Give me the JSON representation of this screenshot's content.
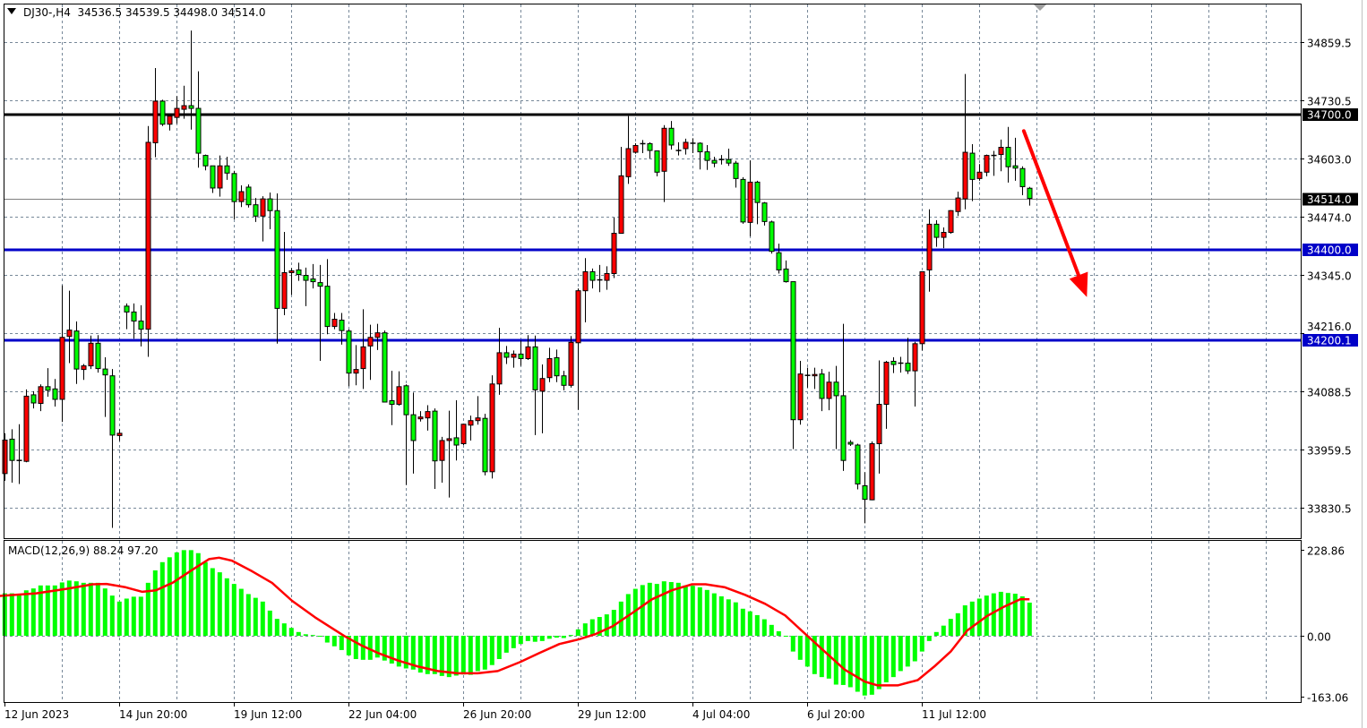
{
  "header": {
    "symbol": "DJ30-,H4",
    "open": "34536.5",
    "high": "34539.5",
    "low": "34498.0",
    "close": "34514.0"
  },
  "colors": {
    "bull": "#ff0000",
    "bear": "#00ff00",
    "grid": "#778899",
    "resistance": "#000000",
    "support": "#0000c8",
    "macd_hist": "#00ff00",
    "macd_signal": "#ff0000",
    "arrow": "#ff0000"
  },
  "price_axis": {
    "ticks": [
      "34859.5",
      "34730.5",
      "34603.0",
      "34474.0",
      "34345.0",
      "34216.0",
      "34088.5",
      "33959.5",
      "33830.5"
    ],
    "range": [
      33830.5,
      34859.5
    ]
  },
  "levels": [
    {
      "label": "34700.0",
      "value": 34700.0,
      "kind": "resistance"
    },
    {
      "label": "34400.0",
      "value": 34400.0,
      "kind": "support"
    },
    {
      "label": "34200.1",
      "value": 34200.1,
      "kind": "support"
    }
  ],
  "bid": {
    "label": "34514.0",
    "value": 34514.0
  },
  "time_axis": {
    "labels": [
      "12 Jun 2023",
      "14 Jun 20:00",
      "19 Jun 12:00",
      "22 Jun 04:00",
      "26 Jun 20:00",
      "29 Jun 12:00",
      "4 Jul 04:00",
      "6 Jul 20:00",
      "11 Jul 12:00"
    ],
    "label_every_bars": 16
  },
  "annotation": {
    "type": "arrow",
    "direction": "down",
    "from": {
      "bar": 142.2,
      "price": 34663
    },
    "to": {
      "bar": 151,
      "price": 34296
    }
  },
  "macd": {
    "title": "MACD(12,26,9) 88.24 97.20",
    "axis": {
      "ticks": [
        "228.86",
        "0.00",
        "-163.06"
      ],
      "values": [
        228.86,
        0,
        -163.06
      ]
    },
    "main": [
      113,
      113,
      111,
      121,
      126,
      134,
      134,
      134,
      142,
      147,
      145,
      141,
      141,
      141,
      126,
      107,
      91,
      99,
      104,
      104,
      141,
      174,
      196,
      209,
      222,
      228,
      228,
      220,
      196,
      180,
      169,
      153,
      138,
      125,
      111,
      101,
      91,
      67,
      45,
      33,
      21,
      10,
      4,
      2,
      -2,
      -18,
      -28,
      -38,
      -52,
      -62,
      -64,
      -64,
      -58,
      -66,
      -74,
      -82,
      -87,
      -90,
      -98,
      -102,
      -102,
      -107,
      -110,
      -106,
      -103,
      -104,
      -94,
      -90,
      -78,
      -62,
      -45,
      -33,
      -22,
      -14,
      -16,
      -14,
      -8,
      -5,
      -6,
      2,
      17,
      33,
      44,
      50,
      57,
      69,
      91,
      111,
      125,
      135,
      141,
      138,
      145,
      143,
      141,
      134,
      133,
      129,
      122,
      113,
      105,
      97,
      89,
      72,
      65,
      55,
      44,
      29,
      12,
      -2,
      -42,
      -64,
      -82,
      -102,
      -110,
      -114,
      -130,
      -131,
      -137,
      -149,
      -159,
      -157,
      -142,
      -124,
      -110,
      -94,
      -82,
      -68,
      -42,
      -14,
      10,
      27,
      45,
      60,
      81,
      91,
      99,
      107,
      113,
      117,
      114,
      112,
      105,
      88.24
    ],
    "signal": [
      [
        -0.7,
        106
      ],
      [
        4.4,
        113
      ],
      [
        8.6,
        125
      ],
      [
        12.3,
        137
      ],
      [
        14.2,
        138
      ],
      [
        16.9,
        129
      ],
      [
        19.2,
        117
      ],
      [
        21.1,
        121
      ],
      [
        23.4,
        141
      ],
      [
        26.2,
        176
      ],
      [
        28.5,
        204
      ],
      [
        29.9,
        208
      ],
      [
        31.7,
        200
      ],
      [
        34.5,
        172
      ],
      [
        37.3,
        141
      ],
      [
        40.1,
        93
      ],
      [
        43.3,
        49
      ],
      [
        45.6,
        21
      ],
      [
        47.5,
        -2
      ],
      [
        49.8,
        -26
      ],
      [
        52.1,
        -46
      ],
      [
        54.9,
        -66
      ],
      [
        57.7,
        -82
      ],
      [
        60.4,
        -94
      ],
      [
        63.2,
        -100
      ],
      [
        66.0,
        -100
      ],
      [
        68.8,
        -94
      ],
      [
        71.9,
        -70
      ],
      [
        74.6,
        -46
      ],
      [
        77.4,
        -22
      ],
      [
        80.2,
        -9
      ],
      [
        82.5,
        5
      ],
      [
        84.8,
        25
      ],
      [
        87.6,
        61
      ],
      [
        90.3,
        97
      ],
      [
        93.1,
        121
      ],
      [
        95.9,
        137
      ],
      [
        97.8,
        137
      ],
      [
        100.5,
        129
      ],
      [
        103.3,
        109
      ],
      [
        106.1,
        85
      ],
      [
        108.9,
        54
      ],
      [
        111.7,
        5
      ],
      [
        114.4,
        -42
      ],
      [
        117.2,
        -90
      ],
      [
        120,
        -122
      ],
      [
        121.8,
        -132
      ],
      [
        124.6,
        -132
      ],
      [
        127.4,
        -118
      ],
      [
        129.7,
        -82
      ],
      [
        132,
        -42
      ],
      [
        134.3,
        14
      ],
      [
        137.1,
        53
      ],
      [
        139.4,
        77
      ],
      [
        141.7,
        97
      ],
      [
        143,
        97.2
      ]
    ]
  },
  "chart_data": {
    "type": "candlestick",
    "timeframe": "H4",
    "ohlc": [
      [
        33906,
        33995,
        33890,
        33980
      ],
      [
        33982,
        34004,
        33886,
        33935
      ],
      [
        33935,
        34015,
        33883,
        33935
      ],
      [
        33933,
        34092,
        33931,
        34077
      ],
      [
        34080,
        34088,
        34050,
        34062
      ],
      [
        34061,
        34103,
        34044,
        34098
      ],
      [
        34098,
        34139,
        34076,
        34090
      ],
      [
        34093,
        34115,
        34054,
        34070
      ],
      [
        34070,
        34322,
        34020,
        34207
      ],
      [
        34209,
        34310,
        34150,
        34223
      ],
      [
        34221,
        34242,
        34104,
        34137
      ],
      [
        34136,
        34148,
        34113,
        34144
      ],
      [
        34144,
        34211,
        34137,
        34194
      ],
      [
        34194,
        34212,
        34129,
        34138
      ],
      [
        34137,
        34163,
        34031,
        34124
      ],
      [
        34122,
        34137,
        33786,
        33991
      ],
      [
        33990,
        34004,
        33978,
        33995
      ],
      [
        34276,
        34282,
        34225,
        34263
      ],
      [
        34263,
        34282,
        34204,
        34243
      ],
      [
        34243,
        34278,
        34187,
        34225
      ],
      [
        34225,
        34674,
        34164,
        34638
      ],
      [
        34637,
        34802,
        34605,
        34729
      ],
      [
        34729,
        34732,
        34674,
        34678
      ],
      [
        34678,
        34701,
        34664,
        34696
      ],
      [
        34693,
        34740,
        34679,
        34713
      ],
      [
        34711,
        34763,
        34690,
        34719
      ],
      [
        34719,
        34885,
        34666,
        34713
      ],
      [
        34713,
        34795,
        34582,
        34614
      ],
      [
        34609,
        34611,
        34576,
        34586
      ],
      [
        34586,
        34586,
        34526,
        34537
      ],
      [
        34537,
        34609,
        34518,
        34586
      ],
      [
        34586,
        34606,
        34555,
        34570
      ],
      [
        34569,
        34575,
        34468,
        34507
      ],
      [
        34507,
        34543,
        34495,
        34529
      ],
      [
        34539,
        34545,
        34494,
        34500
      ],
      [
        34500,
        34515,
        34462,
        34475
      ],
      [
        34475,
        34519,
        34419,
        34513
      ],
      [
        34513,
        34527,
        34446,
        34487
      ],
      [
        34487,
        34525,
        34193,
        34271
      ],
      [
        34271,
        34440,
        34256,
        34350
      ],
      [
        34350,
        34360,
        34301,
        34354
      ],
      [
        34356,
        34372,
        34332,
        34346
      ],
      [
        34344,
        34361,
        34276,
        34333
      ],
      [
        34336,
        34369,
        34315,
        34330
      ],
      [
        34328,
        34367,
        34155,
        34320
      ],
      [
        34320,
        34380,
        34214,
        34231
      ],
      [
        34231,
        34261,
        34225,
        34247
      ],
      [
        34245,
        34261,
        34191,
        34222
      ],
      [
        34221,
        34225,
        34099,
        34128
      ],
      [
        34128,
        34190,
        34101,
        34136
      ],
      [
        34138,
        34269,
        34093,
        34186
      ],
      [
        34188,
        34235,
        34113,
        34207
      ],
      [
        34207,
        34237,
        34179,
        34217
      ],
      [
        34217,
        34222,
        34063,
        34064
      ],
      [
        34067,
        34133,
        34013,
        34059
      ],
      [
        34059,
        34132,
        34056,
        34098
      ],
      [
        34100,
        34103,
        33881,
        34036
      ],
      [
        34036,
        34085,
        33906,
        33979
      ],
      [
        34027,
        34044,
        34021,
        34031
      ],
      [
        34029,
        34057,
        34001,
        34043
      ],
      [
        34044,
        34050,
        33872,
        33934
      ],
      [
        33935,
        33987,
        33886,
        33979
      ],
      [
        33979,
        34045,
        33853,
        33983
      ],
      [
        33985,
        34068,
        33935,
        33969
      ],
      [
        33972,
        34016,
        33969,
        34015
      ],
      [
        34013,
        34034,
        33979,
        34023
      ],
      [
        34023,
        34077,
        34014,
        34029
      ],
      [
        34028,
        34038,
        33902,
        33910
      ],
      [
        33910,
        34123,
        33895,
        34104
      ],
      [
        34104,
        34228,
        34080,
        34173
      ],
      [
        34173,
        34188,
        34148,
        34163
      ],
      [
        34163,
        34178,
        34140,
        34170
      ],
      [
        34170,
        34200,
        34144,
        34160
      ],
      [
        34160,
        34212,
        34157,
        34186
      ],
      [
        34186,
        34211,
        33991,
        34091
      ],
      [
        34088,
        34147,
        33995,
        34116
      ],
      [
        34118,
        34184,
        34108,
        34160
      ],
      [
        34162,
        34180,
        34108,
        34122
      ],
      [
        34122,
        34133,
        34090,
        34101
      ],
      [
        34101,
        34210,
        34096,
        34196
      ],
      [
        34195,
        34315,
        34047,
        34310
      ],
      [
        34310,
        34382,
        34240,
        34352
      ],
      [
        34352,
        34359,
        34315,
        34333
      ],
      [
        34334,
        34367,
        34307,
        34334
      ],
      [
        34333,
        34364,
        34312,
        34348
      ],
      [
        34348,
        34472,
        34338,
        34437
      ],
      [
        34437,
        34628,
        34436,
        34564
      ],
      [
        34562,
        34696,
        34546,
        34624
      ],
      [
        34616,
        34636,
        34613,
        34631
      ],
      [
        34635,
        34643,
        34614,
        34635
      ],
      [
        34635,
        34638,
        34602,
        34620
      ],
      [
        34619,
        34619,
        34563,
        34572
      ],
      [
        34574,
        34676,
        34506,
        34669
      ],
      [
        34669,
        34685,
        34622,
        34632
      ],
      [
        34620,
        34638,
        34609,
        34620
      ],
      [
        34624,
        34646,
        34611,
        34638
      ],
      [
        34636,
        34647,
        34614,
        34636
      ],
      [
        34636,
        34638,
        34578,
        34617
      ],
      [
        34617,
        34632,
        34577,
        34598
      ],
      [
        34598,
        34606,
        34583,
        34592
      ],
      [
        34600,
        34610,
        34589,
        34600
      ],
      [
        34600,
        34624,
        34586,
        34592
      ],
      [
        34592,
        34597,
        34538,
        34558
      ],
      [
        34556,
        34561,
        34458,
        34462
      ],
      [
        34461,
        34598,
        34430,
        34550
      ],
      [
        34550,
        34553,
        34457,
        34505
      ],
      [
        34504,
        34506,
        34454,
        34463
      ],
      [
        34462,
        34465,
        34392,
        34397
      ],
      [
        34394,
        34414,
        34348,
        34356
      ],
      [
        34358,
        34377,
        34328,
        34330
      ],
      [
        34330,
        34330,
        33960,
        34025
      ],
      [
        34025,
        34155,
        34014,
        34126
      ],
      [
        34123,
        34140,
        34096,
        34123
      ],
      [
        34122,
        34140,
        34093,
        34125
      ],
      [
        34126,
        34137,
        34044,
        34072
      ],
      [
        34072,
        34131,
        34046,
        34108
      ],
      [
        34108,
        34144,
        33960,
        34078
      ],
      [
        34078,
        34237,
        33912,
        33935
      ],
      [
        33975,
        33980,
        33967,
        33971
      ],
      [
        33969,
        33972,
        33871,
        33883
      ],
      [
        33879,
        33909,
        33796,
        33849
      ],
      [
        33848,
        33977,
        33847,
        33972
      ],
      [
        33972,
        34156,
        33906,
        34059
      ],
      [
        34059,
        34155,
        34005,
        34152
      ],
      [
        34154,
        34163,
        34128,
        34147
      ],
      [
        34150,
        34164,
        34129,
        34150
      ],
      [
        34150,
        34206,
        34126,
        34133
      ],
      [
        34133,
        34197,
        34054,
        34193
      ],
      [
        34193,
        34352,
        34178,
        34352
      ],
      [
        34356,
        34490,
        34308,
        34457
      ],
      [
        34457,
        34466,
        34407,
        34428
      ],
      [
        34428,
        34450,
        34404,
        34439
      ],
      [
        34439,
        34488,
        34436,
        34487
      ],
      [
        34485,
        34529,
        34475,
        34515
      ],
      [
        34513,
        34789,
        34490,
        34616
      ],
      [
        34614,
        34634,
        34508,
        34556
      ],
      [
        34558,
        34590,
        34553,
        34572
      ],
      [
        34572,
        34611,
        34563,
        34609
      ],
      [
        34609,
        34619,
        34564,
        34609
      ],
      [
        34611,
        34644,
        34574,
        34627
      ],
      [
        34627,
        34672,
        34549,
        34584
      ],
      [
        34586,
        34648,
        34553,
        34581
      ],
      [
        34580,
        34585,
        34521,
        34540
      ],
      [
        34536.5,
        34539.5,
        34498.0,
        34514.0
      ]
    ],
    "ylim": [
      33830.5,
      34859.5
    ],
    "grid": true
  }
}
